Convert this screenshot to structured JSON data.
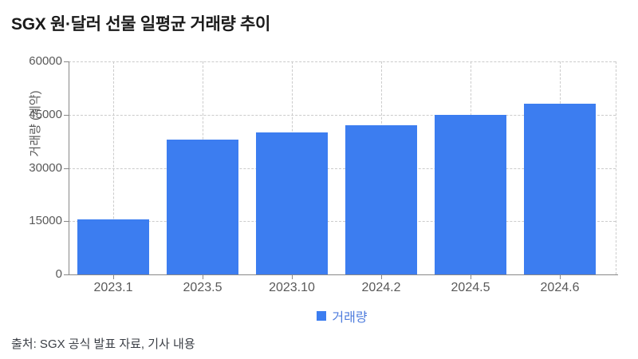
{
  "title": "SGX 원·달러 선물 일평균 거래량 추이",
  "footer": "출처: SGX 공식 발표 자료, 기사 내용",
  "legend": {
    "label": "거래량"
  },
  "colors": {
    "bar": "#3C7DF0",
    "legend_text": "#4E7CDD",
    "grid": "#cbcbcb",
    "axis": "#888888",
    "tick_label": "#595959",
    "title": "#1a1a1a",
    "footer": "#3b3f46"
  },
  "chart_data": {
    "type": "bar",
    "title": "SGX 원·달러 선물 일평균 거래량 추이",
    "categories": [
      "2023.1",
      "2023.5",
      "2023.10",
      "2024.2",
      "2024.5",
      "2024.6"
    ],
    "series": [
      {
        "name": "거래량",
        "values": [
          15500,
          38000,
          40000,
          42000,
          45000,
          48000
        ]
      }
    ],
    "xlabel": "",
    "ylabel": "거래량 (계약)",
    "ylim": [
      0,
      60000
    ],
    "yticks": [
      0,
      15000,
      30000,
      45000,
      60000
    ],
    "grid": "dashed, horizontal at y-ticks and vertical at category centers, dashed right border",
    "legend_position": "bottom-center",
    "source_note": "출처: SGX 공식 발표 자료, 기사 내용"
  }
}
